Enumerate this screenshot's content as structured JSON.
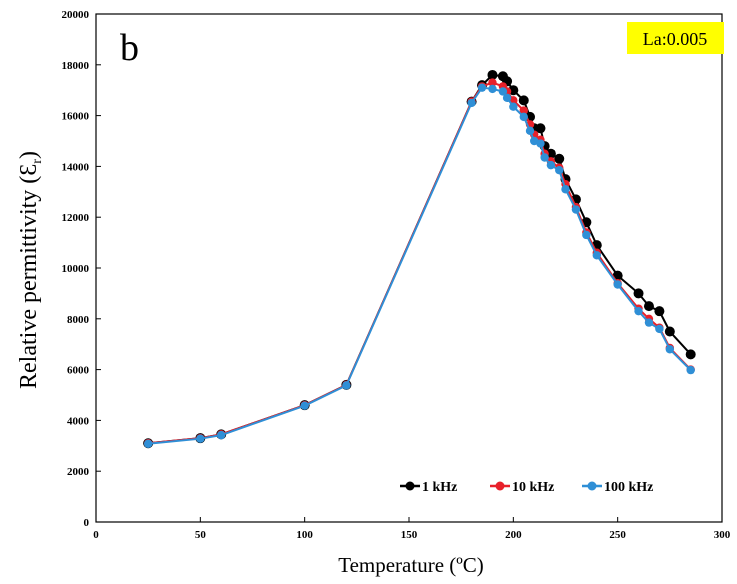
{
  "chart_data": {
    "type": "line",
    "panel_label": "b",
    "badge": {
      "text": "La:0.005",
      "background": "#ffff00"
    },
    "xlabel": "Temperature (ºC)",
    "ylabel_main": "Relative permittivity (Ɛ",
    "ylabel_sub": "r",
    "ylabel_end": ")",
    "xlim": [
      0,
      300
    ],
    "ylim": [
      0,
      20000
    ],
    "xticks": [
      0,
      50,
      100,
      150,
      200,
      250,
      300
    ],
    "yticks": [
      0,
      2000,
      4000,
      6000,
      8000,
      10000,
      12000,
      14000,
      16000,
      18000,
      20000
    ],
    "grid": false,
    "legend_position": "bottom-right",
    "series": [
      {
        "name": "1 kHz",
        "color": "#000000",
        "x": [
          25,
          50,
          60,
          100,
          120,
          180,
          185,
          190,
          195,
          197,
          200,
          205,
          208,
          210,
          213,
          215,
          218,
          222,
          225,
          230,
          235,
          240,
          250,
          260,
          265,
          270,
          275,
          285
        ],
        "y": [
          3100,
          3300,
          3450,
          4600,
          5400,
          16550,
          17200,
          17600,
          17550,
          17350,
          17000,
          16600,
          15950,
          15500,
          15500,
          14800,
          14500,
          14300,
          13500,
          12700,
          11800,
          10900,
          9700,
          9000,
          8500,
          8300,
          7500,
          6600
        ]
      },
      {
        "name": "10 kHz",
        "color": "#e8202a",
        "x": [
          25,
          50,
          60,
          100,
          120,
          180,
          185,
          190,
          195,
          197,
          200,
          205,
          208,
          210,
          213,
          215,
          218,
          222,
          225,
          230,
          235,
          240,
          250,
          260,
          265,
          270,
          275,
          285
        ],
        "y": [
          3100,
          3300,
          3450,
          4600,
          5400,
          16550,
          17150,
          17300,
          17150,
          16950,
          16600,
          16200,
          15650,
          15250,
          15050,
          14500,
          14200,
          13950,
          13300,
          12400,
          11400,
          10600,
          9400,
          8400,
          8000,
          7650,
          6850,
          6000
        ]
      },
      {
        "name": "100 kHz",
        "color": "#2f8fd6",
        "x": [
          25,
          50,
          60,
          100,
          120,
          180,
          185,
          190,
          195,
          197,
          200,
          205,
          208,
          210,
          213,
          215,
          218,
          222,
          225,
          230,
          235,
          240,
          250,
          260,
          265,
          270,
          275,
          285
        ],
        "y": [
          3080,
          3280,
          3420,
          4580,
          5380,
          16500,
          17100,
          17050,
          16950,
          16700,
          16350,
          15950,
          15400,
          15000,
          14900,
          14350,
          14050,
          13850,
          13100,
          12300,
          11300,
          10500,
          9350,
          8300,
          7850,
          7600,
          6800,
          5980
        ]
      }
    ]
  }
}
